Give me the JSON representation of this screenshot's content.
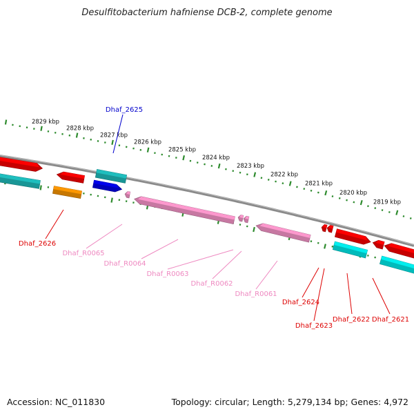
{
  "title": "Desulfitobacterium hafniense DCB-2, complete genome",
  "footer": {
    "accession": "Accession: NC_011830",
    "topology": "Topology: circular; Length: 5,279,134 bp; Genes: 4,972"
  },
  "colors": {
    "backbone": "#8a8a8a",
    "tick": "#2e8b2e",
    "red": "#ff0000",
    "cyan": "#00f0f0",
    "teal": "#20c0c0",
    "blue": "#0000ee",
    "orange": "#ff9900",
    "pink": "#ff9ad0",
    "label_red": "#dd0000",
    "label_blue": "#0000cc",
    "label_pink": "#ee88c0"
  },
  "kbp_labels": [
    "2829 kbp",
    "2828 kbp",
    "2827 kbp",
    "2826 kbp",
    "2825 kbp",
    "2824 kbp",
    "2823 kbp",
    "2822 kbp",
    "2821 kbp",
    "2820 kbp",
    "2819 kbp"
  ],
  "gene_labels": [
    {
      "name": "Dhaf_2625",
      "color": "label_blue"
    },
    {
      "name": "Dhaf_2626",
      "color": "label_red"
    },
    {
      "name": "Dhaf_R0065",
      "color": "label_pink"
    },
    {
      "name": "Dhaf_R0064",
      "color": "label_pink"
    },
    {
      "name": "Dhaf_R0063",
      "color": "label_pink"
    },
    {
      "name": "Dhaf_R0062",
      "color": "label_pink"
    },
    {
      "name": "Dhaf_R0061",
      "color": "label_pink"
    },
    {
      "name": "Dhaf_2624",
      "color": "label_red"
    },
    {
      "name": "Dhaf_2623",
      "color": "label_red"
    },
    {
      "name": "Dhaf_2622",
      "color": "label_red"
    },
    {
      "name": "Dhaf_2621",
      "color": "label_red"
    }
  ]
}
